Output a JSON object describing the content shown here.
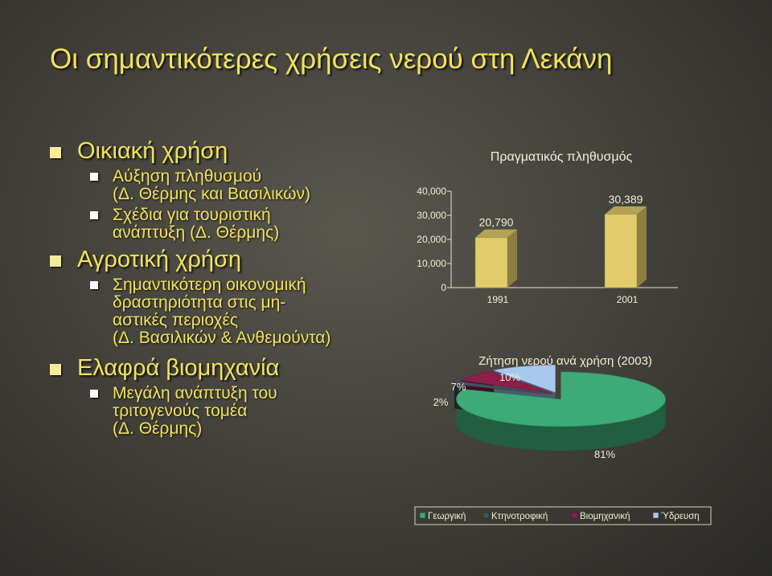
{
  "slide": {
    "title": "Οι σημαντικότερες χρήσεις νερού στη Λεκάνη",
    "bullets": [
      {
        "text": "Οικιακή χρήση",
        "sub": [
          "Αύξηση πληθυσμού\n(Δ. Θέρμης και Βασιλικών)",
          "Σχέδια για τουριστική\nανάπτυξη (Δ. Θέρμης)"
        ]
      },
      {
        "text": "Αγροτική χρήση",
        "sub": [
          "Σημαντικότερη οικονομική\nδραστηριότητα στις μη-\nαστικές περιοχές\n(Δ. Βασιλικών & Ανθεμούντα)"
        ]
      },
      {
        "text": "Ελαφρά βιομηχανία",
        "sub": [
          "Μεγάλη ανάπτυξη του\nτριτογενούς τομέα\n(Δ. Θέρμης)"
        ]
      }
    ]
  },
  "chart_data": [
    {
      "type": "bar",
      "title": "Πραγματικός πληθυσμός",
      "categories": [
        "1991",
        "2001"
      ],
      "values": [
        20790,
        30389
      ],
      "value_labels": [
        "20,790",
        "30,389"
      ],
      "yticks": [
        "0",
        "10,000",
        "20,000",
        "30,000",
        "40,000"
      ],
      "ylim": [
        0,
        40000
      ],
      "bar_color": "#e2cc6a"
    },
    {
      "type": "pie",
      "title": "Ζήτηση νερού ανά χρήση (2003)",
      "labels": [
        "Γεωργική",
        "Κτηνοτροφική",
        "Βιομηχανική",
        "Ύδρευση"
      ],
      "values": [
        81,
        2,
        7,
        10
      ],
      "value_labels": [
        "81%",
        "2%",
        "7%",
        "10%"
      ],
      "colors": [
        "#3daa78",
        "#3f5260",
        "#8b1f4a",
        "#a9c8f0"
      ],
      "legend_position": "bottom"
    }
  ]
}
